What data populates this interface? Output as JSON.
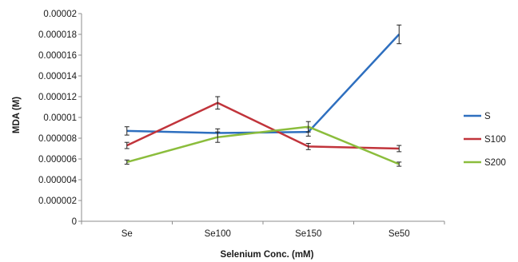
{
  "chart_data": {
    "type": "line",
    "title": "",
    "xlabel": "Selenium Conc. (mM)",
    "ylabel": "MDA (M)",
    "categories": [
      "Se",
      "Se100",
      "Se150",
      "Se50"
    ],
    "ylim": [
      0,
      2e-05
    ],
    "yticks": [
      "0",
      "0.000002",
      "0.000004",
      "0.000006",
      "0.000008",
      "0.00001",
      "0.000012",
      "0.000014",
      "0.000016",
      "0.000018",
      "0.00002"
    ],
    "grid": false,
    "legend": "right",
    "series": [
      {
        "name": "S",
        "color": "#2e6fbf",
        "values": [
          8.7e-06,
          8.5e-06,
          8.6e-06,
          1.8e-05
        ],
        "errors": [
          4e-07,
          4e-07,
          4e-07,
          9e-07
        ]
      },
      {
        "name": "S100",
        "color": "#c1343b",
        "values": [
          7.3e-06,
          1.14e-05,
          7.2e-06,
          7e-06
        ],
        "errors": [
          3e-07,
          6e-07,
          3e-07,
          3e-07
        ]
      },
      {
        "name": "S200",
        "color": "#8bbd3c",
        "values": [
          5.7e-06,
          8.1e-06,
          9.1e-06,
          5.5e-06
        ],
        "errors": [
          2e-07,
          5e-07,
          5e-07,
          2e-07
        ]
      }
    ]
  }
}
